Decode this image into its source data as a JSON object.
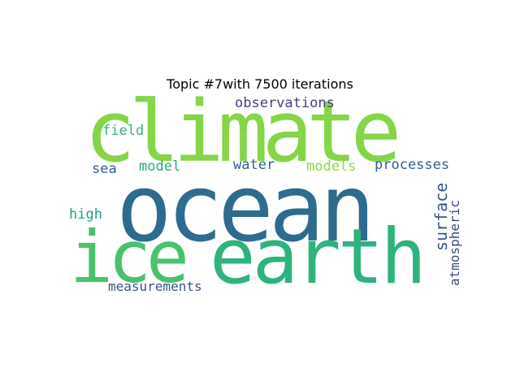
{
  "figure": {
    "title": "Topic #7with 7500 iterations"
  },
  "words": [
    {
      "key": "climate",
      "text": "climate",
      "color": "#86d549"
    },
    {
      "key": "ocean",
      "text": "ocean",
      "color": "#2e6b8e"
    },
    {
      "key": "ice",
      "text": "ice",
      "color": "#4ac16d"
    },
    {
      "key": "earth",
      "text": "earth",
      "color": "#2eb37c"
    },
    {
      "key": "observations",
      "text": "observations",
      "color": "#433e85"
    },
    {
      "key": "field",
      "text": "field",
      "color": "#31b57b"
    },
    {
      "key": "processes",
      "text": "processes",
      "color": "#355e8d"
    },
    {
      "key": "sea",
      "text": "sea",
      "color": "#355f8d"
    },
    {
      "key": "model",
      "text": "model",
      "color": "#25ab82"
    },
    {
      "key": "water",
      "text": "water",
      "color": "#34618d"
    },
    {
      "key": "models",
      "text": "models",
      "color": "#8ed645"
    },
    {
      "key": "high",
      "text": "high",
      "color": "#1fa088"
    },
    {
      "key": "surface",
      "text": "surface",
      "color": "#39568c"
    },
    {
      "key": "atmospheric",
      "text": "atmospheric",
      "color": "#3e4989"
    },
    {
      "key": "measurements",
      "text": "measurements",
      "color": "#3b528b"
    }
  ]
}
